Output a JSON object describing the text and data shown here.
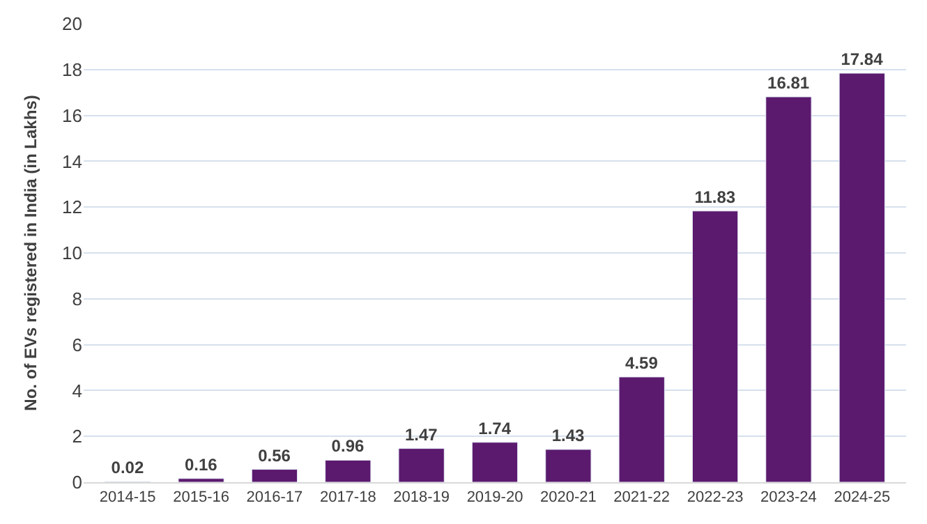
{
  "chart_data": {
    "type": "bar",
    "ylabel": "No. of EVs registered in India (in Lakhs)",
    "categories": [
      "2014-15",
      "2015-16",
      "2016-17",
      "2017-18",
      "2018-19",
      "2019-20",
      "2020-21",
      "2021-22",
      "2022-23",
      "2023-24",
      "2024-25"
    ],
    "values": [
      0.02,
      0.16,
      0.56,
      0.96,
      1.47,
      1.74,
      1.43,
      4.59,
      11.83,
      16.81,
      17.84
    ],
    "color": "#5b1a6e",
    "ylim": [
      0,
      20
    ],
    "yticks": [
      0,
      2,
      4,
      6,
      8,
      10,
      12,
      14,
      16,
      18,
      20
    ],
    "grid": "y",
    "data_labels": true
  }
}
